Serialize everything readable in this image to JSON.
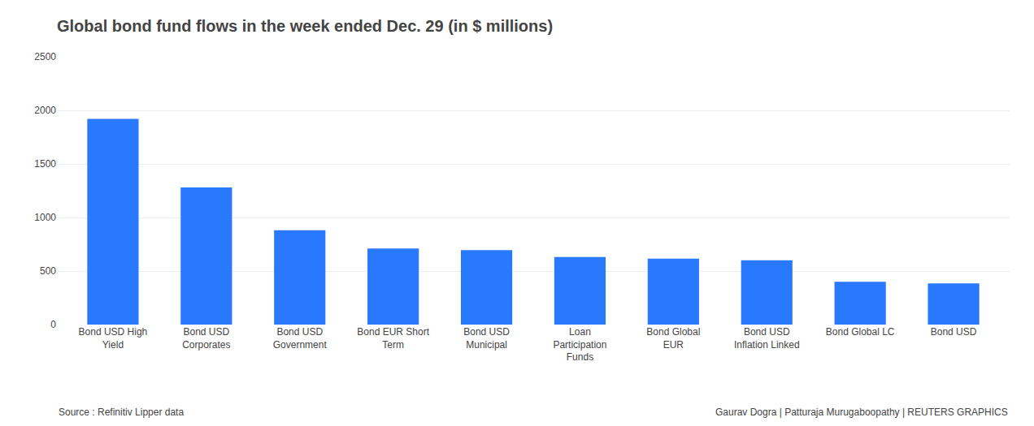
{
  "chart_data": {
    "type": "bar",
    "title": "Global bond fund flows in the week ended Dec. 29 (in $ millions)",
    "categories": [
      "Bond USD High\nYield",
      "Bond USD\nCorporates",
      "Bond USD\nGovernment",
      "Bond EUR Short\nTerm",
      "Bond USD\nMunicipal",
      "Loan\nParticipation\nFunds",
      "Bond Global\nEUR",
      "Bond USD\nInflation Linked",
      "Bond Global LC",
      "Bond USD"
    ],
    "values": [
      1920,
      1280,
      880,
      710,
      695,
      630,
      615,
      600,
      400,
      385
    ],
    "color": "#2979ff",
    "ylim": [
      0,
      2500
    ],
    "yticks": [
      0,
      500,
      1000,
      1500,
      2000,
      2500
    ],
    "grid": true,
    "annotations": [
      "Source : Refinitiv Lipper data",
      "Gaurav Dogra | Patturaja Murugaboopathy | REUTERS GRAPHICS"
    ]
  }
}
